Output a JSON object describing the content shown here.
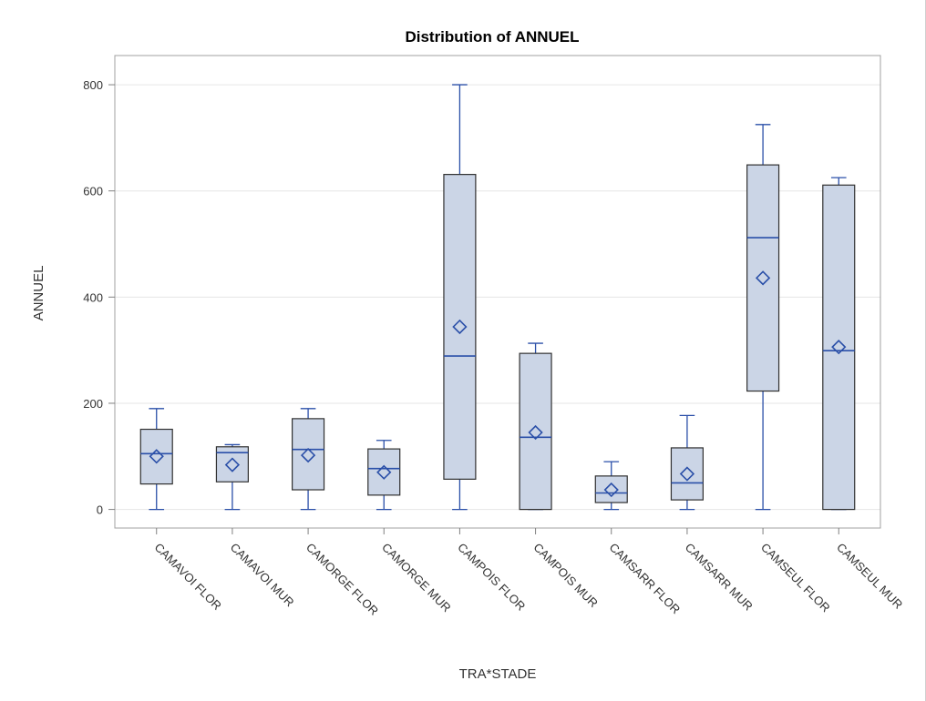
{
  "chart_data": {
    "type": "box",
    "title": "Distribution of ANNUEL",
    "xlabel": "TRA*STADE",
    "ylabel": "ANNUEL",
    "ylim": [
      -35,
      855
    ],
    "yticks": [
      0,
      200,
      400,
      600,
      800
    ],
    "grid": true,
    "colors": {
      "box_fill": "#cbd5e6",
      "box_edge": "#303030",
      "series": "#2a4fa8",
      "grid": "#e6e6e6",
      "frame": "#a0a0a0"
    },
    "categories": [
      "CAMAVOI FLOR",
      "CAMAVOI MUR",
      "CAMORGE FLOR",
      "CAMORGE MUR",
      "CAMPOIS FLOR",
      "CAMPOIS MUR",
      "CAMSARR FLOR",
      "CAMSARR MUR",
      "CAMSEUL FLOR",
      "CAMSEUL MUR"
    ],
    "boxes": [
      {
        "min": 0,
        "q1": 48,
        "median": 105,
        "q3": 151,
        "max": 190,
        "mean": 100
      },
      {
        "min": 0,
        "q1": 52,
        "median": 107,
        "q3": 118,
        "max": 122,
        "mean": 84
      },
      {
        "min": 0,
        "q1": 37,
        "median": 113,
        "q3": 171,
        "max": 190,
        "mean": 102
      },
      {
        "min": 0,
        "q1": 27,
        "median": 77,
        "q3": 114,
        "max": 130,
        "mean": 70
      },
      {
        "min": 0,
        "q1": 57,
        "median": 289,
        "q3": 631,
        "max": 800,
        "mean": 344
      },
      {
        "min": 0,
        "q1": 0,
        "median": 136,
        "q3": 294,
        "max": 313,
        "mean": 145
      },
      {
        "min": 0,
        "q1": 13,
        "median": 31,
        "q3": 63,
        "max": 90,
        "mean": 37
      },
      {
        "min": 0,
        "q1": 18,
        "median": 50,
        "q3": 116,
        "max": 177,
        "mean": 67
      },
      {
        "min": 0,
        "q1": 223,
        "median": 512,
        "q3": 649,
        "max": 725,
        "mean": 436
      },
      {
        "min": 0,
        "q1": 0,
        "median": 299,
        "q3": 611,
        "max": 625,
        "mean": 306
      }
    ]
  }
}
